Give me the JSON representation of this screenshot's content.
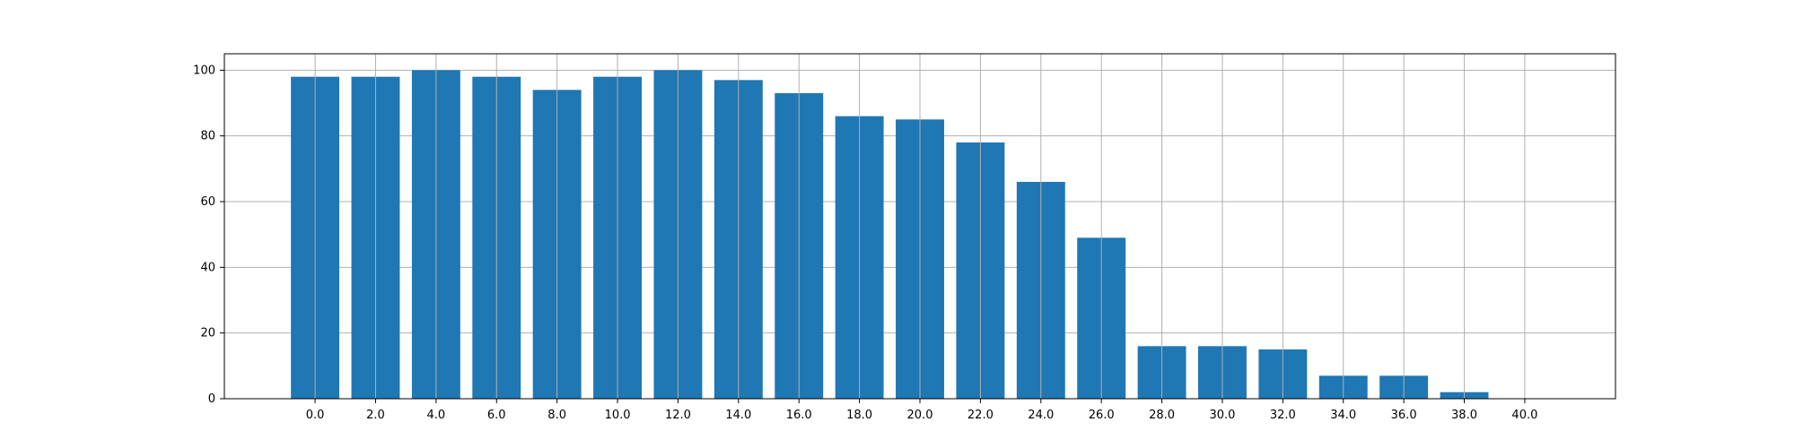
{
  "chart_data": {
    "type": "bar",
    "categories": [
      "0.0",
      "2.0",
      "4.0",
      "6.0",
      "8.0",
      "10.0",
      "12.0",
      "14.0",
      "16.0",
      "18.0",
      "20.0",
      "22.0",
      "24.0",
      "26.0",
      "28.0",
      "30.0",
      "32.0",
      "34.0",
      "36.0",
      "38.0",
      "40.0"
    ],
    "values": [
      98,
      98,
      100,
      98,
      94,
      98,
      100,
      97,
      93,
      86,
      85,
      78,
      66,
      49,
      16,
      16,
      15,
      7,
      7,
      2,
      0
    ],
    "title": "",
    "xlabel": "",
    "ylabel": "",
    "ylim": [
      0,
      105
    ],
    "yticks": [
      0,
      20,
      40,
      60,
      80,
      100
    ],
    "grid": true,
    "legend": "none",
    "bar_color": "#1f77b4",
    "grid_color": "#b0b0b0"
  }
}
